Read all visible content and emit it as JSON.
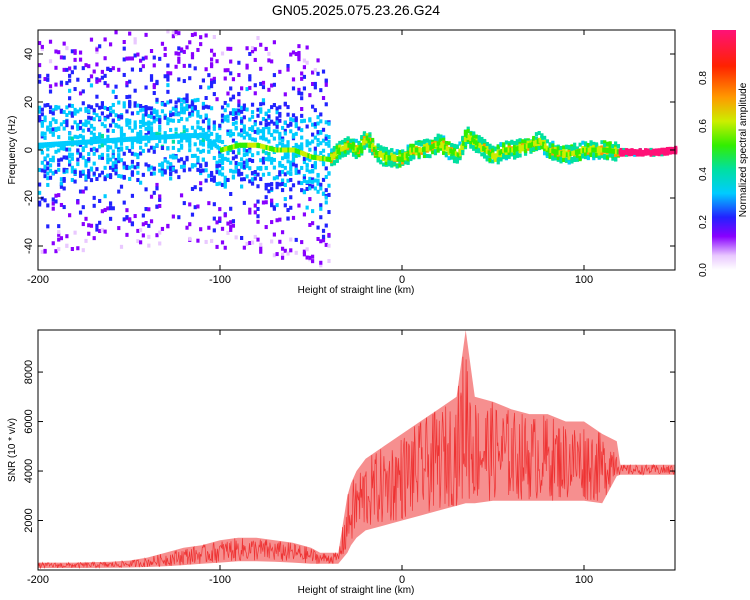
{
  "title": "GN05.2025.075.23.26.G24",
  "chart_data": [
    {
      "type": "heatmap",
      "xlabel": "Height of straight line (km)",
      "ylabel": "Frequency (Hz)",
      "xlim": [
        -200,
        150
      ],
      "ylim": [
        -50,
        50
      ],
      "xticks": [
        -200,
        -100,
        0,
        100
      ],
      "yticks": [
        -40,
        -20,
        0,
        20,
        40
      ],
      "colorbar": {
        "label": "Normalized spectral amplitude",
        "range": [
          0,
          1
        ],
        "ticks": [
          "0.0",
          "0.2",
          "0.4",
          "0.6",
          "0.8"
        ]
      },
      "ridge_frequency_hz": [
        [
          -200,
          2
        ],
        [
          -180,
          3
        ],
        [
          -160,
          4
        ],
        [
          -140,
          5
        ],
        [
          -120,
          6
        ],
        [
          -110,
          6
        ],
        [
          -100,
          0
        ],
        [
          -90,
          2
        ],
        [
          -80,
          2
        ],
        [
          -70,
          0
        ],
        [
          -60,
          0
        ],
        [
          -50,
          -3
        ],
        [
          -40,
          -4
        ],
        [
          -35,
          0
        ],
        [
          -30,
          2
        ],
        [
          -25,
          0
        ],
        [
          -20,
          5
        ],
        [
          -15,
          -1
        ],
        [
          -10,
          -3
        ],
        [
          0,
          -4
        ],
        [
          5,
          0
        ],
        [
          10,
          0
        ],
        [
          15,
          1
        ],
        [
          20,
          3
        ],
        [
          25,
          0
        ],
        [
          30,
          -2
        ],
        [
          35,
          6
        ],
        [
          40,
          3
        ],
        [
          45,
          0
        ],
        [
          50,
          -3
        ],
        [
          55,
          0
        ],
        [
          60,
          0
        ],
        [
          70,
          2
        ],
        [
          75,
          4
        ],
        [
          80,
          0
        ],
        [
          90,
          -2
        ],
        [
          100,
          0
        ],
        [
          110,
          0
        ],
        [
          120,
          -1
        ],
        [
          130,
          -1
        ],
        [
          140,
          -1
        ],
        [
          150,
          0
        ]
      ]
    },
    {
      "type": "line",
      "xlabel": "Height of straight line (km)",
      "ylabel": "SNR (10 * v/v)",
      "xlim": [
        -200,
        150
      ],
      "ylim": [
        0,
        9700
      ],
      "xticks": [
        -200,
        -100,
        0,
        100
      ],
      "yticks": [
        2000,
        4000,
        6000,
        8000
      ],
      "color": "#ee3333",
      "envelope": {
        "x": [
          -200,
          -180,
          -160,
          -150,
          -140,
          -130,
          -120,
          -110,
          -100,
          -90,
          -80,
          -70,
          -60,
          -50,
          -45,
          -35,
          -30,
          -28,
          -25,
          -20,
          -10,
          0,
          10,
          20,
          30,
          35,
          40,
          50,
          60,
          70,
          80,
          90,
          100,
          110,
          118,
          120,
          130,
          140,
          150
        ],
        "low": [
          80,
          80,
          90,
          100,
          120,
          150,
          200,
          250,
          300,
          350,
          350,
          330,
          300,
          250,
          250,
          250,
          700,
          1000,
          1300,
          1600,
          1800,
          2000,
          2200,
          2400,
          2600,
          2700,
          2700,
          2800,
          2800,
          2800,
          2800,
          2800,
          2800,
          2700,
          3800,
          3850,
          3850,
          3850,
          3850
        ],
        "high": [
          300,
          300,
          330,
          380,
          500,
          700,
          900,
          1000,
          1200,
          1300,
          1300,
          1200,
          1100,
          900,
          700,
          700,
          3000,
          3500,
          4000,
          4500,
          5000,
          5500,
          6000,
          6500,
          7000,
          9700,
          7000,
          6800,
          6500,
          6300,
          6300,
          6000,
          6000,
          5500,
          5200,
          4250,
          4250,
          4250,
          4250
        ]
      }
    }
  ]
}
